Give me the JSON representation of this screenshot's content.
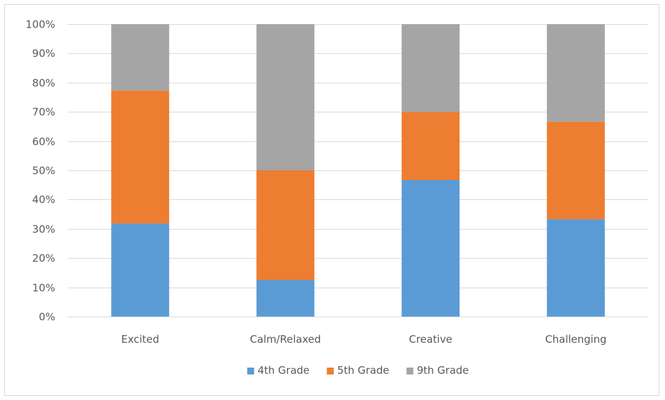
{
  "chart_data": {
    "type": "bar",
    "stacking": "percent",
    "categories": [
      "Excited",
      "Calm/Relaxed",
      "Creative",
      "Challenging"
    ],
    "series": [
      {
        "name": "4th Grade",
        "color": "#5b9bd5",
        "values": [
          31.8,
          12.5,
          46.7,
          33.3
        ]
      },
      {
        "name": "5th Grade",
        "color": "#ed7d31",
        "values": [
          45.5,
          37.5,
          23.3,
          33.3
        ]
      },
      {
        "name": "9th Grade",
        "color": "#a5a5a5",
        "values": [
          22.7,
          50.0,
          30.0,
          33.4
        ]
      }
    ],
    "y_ticks": [
      "0%",
      "10%",
      "20%",
      "30%",
      "40%",
      "50%",
      "60%",
      "70%",
      "80%",
      "90%",
      "100%"
    ],
    "ylim": [
      0,
      100
    ],
    "grid": true,
    "gridline_color": "#d9d9d9",
    "legend_position": "bottom",
    "title": "",
    "xlabel": "",
    "ylabel": ""
  }
}
